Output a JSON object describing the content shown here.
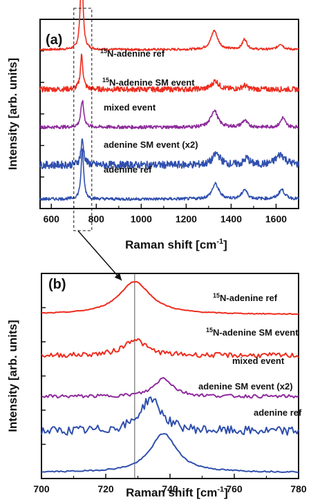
{
  "colors": {
    "red": "#ee2c1e",
    "purple": "#8e2a9c",
    "blue": "#2f4fae"
  },
  "chart_data": [
    {
      "type": "line",
      "panel_label": "(a)",
      "xlabel": "Raman shift [cm",
      "xlabel_sup": "-1",
      "xlabel_end": "]",
      "ylabel": "Intensity [arb. units]",
      "xlim": [
        550,
        1700
      ],
      "xticks": [
        600,
        800,
        1000,
        1200,
        1400,
        1600
      ],
      "xtick_labels": [
        "600",
        "800",
        "1000",
        "1200",
        "1400",
        "1600"
      ],
      "ylim": [
        0,
        10
      ],
      "series": [
        {
          "name_sup": "15",
          "name": "N-adenine ref",
          "color_key": "red",
          "offset": 8.4,
          "peaks": [
            [
              735,
              4.4,
              7
            ],
            [
              1325,
              1.0,
              18
            ],
            [
              1460,
              0.55,
              12
            ],
            [
              1620,
              0.3,
              14
            ]
          ],
          "noise": 0.06
        },
        {
          "name_sup": "15",
          "name": "N-adenine SM event",
          "color_key": "red",
          "offset": 6.3,
          "peaks": [
            [
              735,
              1.8,
              7
            ],
            [
              1330,
              0.45,
              18
            ],
            [
              1460,
              0.2,
              14
            ]
          ],
          "noise": 0.14
        },
        {
          "name_sup": "",
          "name": "mixed event",
          "color_key": "purple",
          "offset": 4.3,
          "peaks": [
            [
              738,
              1.4,
              8
            ],
            [
              1325,
              0.9,
              18
            ],
            [
              1460,
              0.35,
              14
            ],
            [
              1630,
              0.5,
              12
            ]
          ],
          "noise": 0.09
        },
        {
          "name_sup": "",
          "name": "adenine SM event (x2)",
          "color_key": "blue",
          "offset": 2.3,
          "peaks": [
            [
              738,
              1.3,
              8
            ],
            [
              1335,
              0.6,
              20
            ],
            [
              1470,
              0.35,
              14
            ],
            [
              1620,
              0.55,
              25
            ]
          ],
          "noise": 0.2
        },
        {
          "name_sup": "",
          "name": "adenine ref",
          "color_key": "blue",
          "offset": 0.5,
          "peaks": [
            [
              738,
              2.6,
              7
            ],
            [
              1330,
              0.8,
              18
            ],
            [
              1460,
              0.5,
              14
            ],
            [
              1625,
              0.5,
              16
            ]
          ],
          "noise": 0.08
        }
      ]
    },
    {
      "type": "line",
      "panel_label": "(b)",
      "xlabel": "Raman shift [cm",
      "xlabel_sup": "-1",
      "xlabel_end": "]",
      "ylabel": "Intensity [arb. units]",
      "xlim": [
        700,
        780
      ],
      "xticks": [
        700,
        720,
        740,
        760,
        780
      ],
      "xtick_labels": [
        "700",
        "720",
        "740",
        "760",
        "780"
      ],
      "ylim": [
        0,
        10
      ],
      "reference_line_x": 729,
      "series": [
        {
          "name_sup": "15",
          "name": "N-adenine ref",
          "color_key": "red",
          "offset": 8.0,
          "peaks": [
            [
              729,
              1.6,
              6
            ]
          ],
          "noise": 0.02
        },
        {
          "name_sup": "15",
          "name": "N-adenine SM event",
          "color_key": "red",
          "offset": 6.0,
          "peaks": [
            [
              729,
              0.8,
              4
            ]
          ],
          "noise": 0.12
        },
        {
          "name_sup": "",
          "name": "mixed event",
          "color_key": "purple",
          "offset": 4.0,
          "peaks": [
            [
              738,
              0.9,
              3.5
            ]
          ],
          "noise": 0.08
        },
        {
          "name_sup": "",
          "name": "adenine SM event (x2)",
          "color_key": "blue",
          "offset": 2.3,
          "peaks": [
            [
              734,
              1.6,
              4
            ]
          ],
          "noise": 0.22
        },
        {
          "name_sup": "",
          "name": "adenine ref",
          "color_key": "blue",
          "offset": 0.3,
          "peaks": [
            [
              738,
              1.9,
              5
            ]
          ],
          "noise": 0.03
        }
      ]
    }
  ]
}
